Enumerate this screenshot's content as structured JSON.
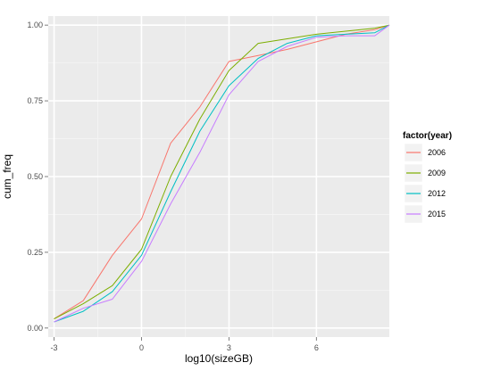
{
  "chart_data": {
    "type": "line",
    "xlabel": "log10(sizeGB)",
    "ylabel": "cum_freq",
    "xlim": [
      -3.2,
      8.5
    ],
    "ylim": [
      -0.03,
      1.03
    ],
    "xticks": [
      -3,
      0,
      3,
      6
    ],
    "xtick_labels": [
      "-3",
      "0",
      "3",
      "6"
    ],
    "yticks": [
      0.0,
      0.25,
      0.5,
      0.75,
      1.0
    ],
    "ytick_labels": [
      "0.00",
      "0.25",
      "0.50",
      "0.75",
      "1.00"
    ],
    "grid": true,
    "legend": {
      "title": "factor(year)",
      "position": "right"
    },
    "series": [
      {
        "name": "2006",
        "color": "#F8766D",
        "x": [
          -3,
          -2,
          -1,
          0,
          1,
          2,
          3,
          4,
          5,
          6,
          7,
          8,
          8.5
        ],
        "y": [
          0.03,
          0.09,
          0.24,
          0.36,
          0.61,
          0.73,
          0.88,
          0.9,
          0.92,
          0.945,
          0.97,
          0.985,
          1.0
        ]
      },
      {
        "name": "2009",
        "color": "#7CAE00",
        "x": [
          -3,
          -2,
          -1,
          0,
          1,
          2,
          3,
          4,
          5,
          6,
          7,
          8,
          8.5
        ],
        "y": [
          0.03,
          0.08,
          0.14,
          0.26,
          0.5,
          0.69,
          0.85,
          0.94,
          0.955,
          0.97,
          0.98,
          0.99,
          1.0
        ]
      },
      {
        "name": "2012",
        "color": "#00BFC4",
        "x": [
          -3,
          -2,
          -1,
          0,
          1,
          2,
          3,
          4,
          5,
          6,
          7,
          8,
          8.5
        ],
        "y": [
          0.02,
          0.055,
          0.12,
          0.24,
          0.45,
          0.65,
          0.8,
          0.89,
          0.94,
          0.965,
          0.97,
          0.975,
          1.0
        ]
      },
      {
        "name": "2015",
        "color": "#C77CFF",
        "x": [
          -3,
          -2,
          -1,
          0,
          1,
          2,
          3,
          4,
          5,
          6,
          7,
          8,
          8.5
        ],
        "y": [
          0.02,
          0.065,
          0.095,
          0.22,
          0.41,
          0.58,
          0.77,
          0.88,
          0.93,
          0.96,
          0.965,
          0.965,
          1.0
        ]
      }
    ]
  }
}
